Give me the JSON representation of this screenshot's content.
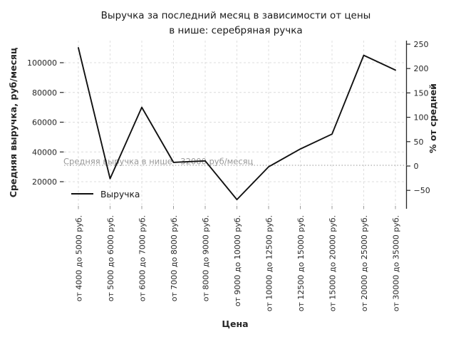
{
  "figure": {
    "title_line1": "Выручка за последний месяц в зависимости от цены",
    "title_line2": "в нише: серебряная ручка"
  },
  "chart_data": {
    "type": "line",
    "title": "Выручка за последний месяц в зависимости от цены в нише: серебряная ручка",
    "xlabel": "Цена",
    "ylabel": "Средняя выручка, руб/месяц",
    "ylabel_right": "% от средней",
    "categories": [
      "от 4000 до 5000 руб.",
      "от 5000 до 6000 руб.",
      "от 6000 до 7000 руб.",
      "от 7000 до 8000 руб.",
      "от 8000 до 9000 руб.",
      "от 9000 до 10000 руб.",
      "от 10000 до 12500 руб.",
      "от 12500 до 15000 руб.",
      "от 15000 до 20000 руб.",
      "от 20000 до 25000 руб.",
      "от 30000 до 35000 руб."
    ],
    "series": [
      {
        "name": "Выручка",
        "values": [
          110000,
          22000,
          70000,
          33000,
          34000,
          8000,
          30000,
          42000,
          52000,
          105000,
          95000
        ],
        "color": "#111111"
      }
    ],
    "yticks_left": [
      20000,
      40000,
      60000,
      80000,
      100000
    ],
    "yticks_right": [
      -50,
      0,
      50,
      100,
      150,
      200,
      250
    ],
    "ylim_left": [
      4000,
      115000
    ],
    "ylim_right": [
      -80,
      257
    ],
    "grid": true,
    "legend_position": "lower-left-inside",
    "average_line": {
      "value": 32000,
      "label": "Средняя выручка в нише - 32000 руб/месяц"
    },
    "colors": {
      "line": "#111111",
      "grid": "#dcdcdc",
      "average_line": "#aaaaaa",
      "average_label": "#999999",
      "tick_text": "#262626",
      "title_text": "#1a1a1a"
    }
  }
}
